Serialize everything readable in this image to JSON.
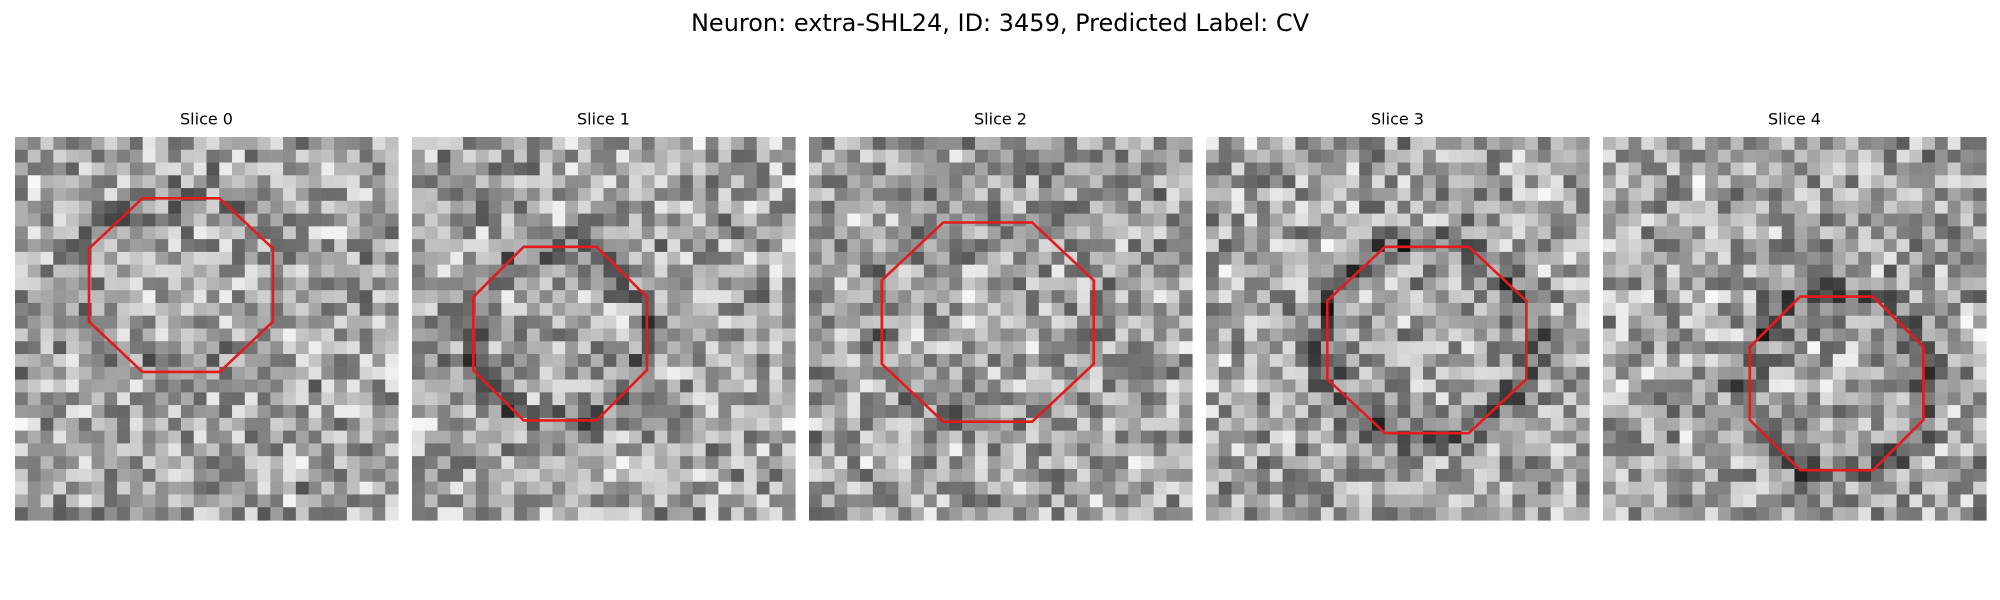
{
  "figure": {
    "title": "Neuron: extra-SHL24, ID: 3459, Predicted Label: CV",
    "panels": [
      {
        "title": "Slice 0"
      },
      {
        "title": "Slice 1"
      },
      {
        "title": "Slice 2"
      },
      {
        "title": "Slice 3"
      },
      {
        "title": "Slice 4"
      }
    ]
  }
}
